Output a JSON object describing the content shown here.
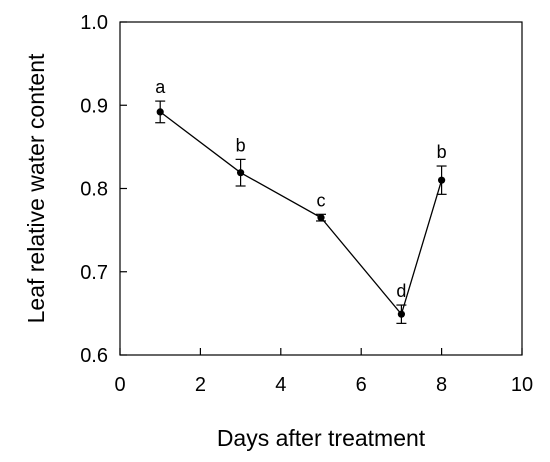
{
  "chart_data": {
    "type": "line",
    "xlabel": "Days after treatment",
    "ylabel": "Leaf relative water content",
    "xlim": [
      0,
      10
    ],
    "ylim": [
      0.6,
      1.0
    ],
    "xticks": [
      0,
      2,
      4,
      6,
      8,
      10
    ],
    "yticks": [
      0.6,
      0.7,
      0.8,
      0.9,
      1.0
    ],
    "xtick_labels": [
      "0",
      "2",
      "4",
      "6",
      "8",
      "10"
    ],
    "ytick_labels": [
      "0.6",
      "0.7",
      "0.8",
      "0.9",
      "1.0"
    ],
    "grid": false,
    "legend": false,
    "series": [
      {
        "x": [
          1,
          3,
          5,
          7,
          8
        ],
        "y": [
          0.892,
          0.819,
          0.765,
          0.649,
          0.81
        ],
        "error": [
          0.013,
          0.016,
          0.004,
          0.011,
          0.017
        ],
        "labels": [
          "a",
          "b",
          "c",
          "d",
          "b"
        ]
      }
    ],
    "colors": {
      "line": "#000000",
      "marker": "#000000"
    }
  }
}
